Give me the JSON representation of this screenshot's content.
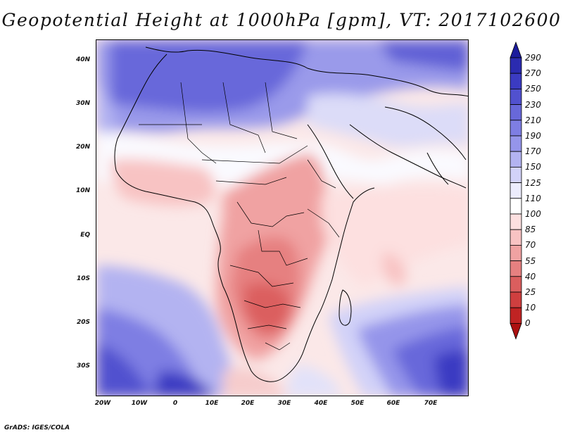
{
  "title": "Geopotential Height at 1000hPa [gpm], VT: 2017102600",
  "footer": "GrADS: IGES/COLA",
  "axes": {
    "lat_ticks": [
      "40N",
      "30N",
      "20N",
      "10N",
      "EQ",
      "10S",
      "20S",
      "30S"
    ],
    "lon_ticks": [
      "20W",
      "10W",
      "0",
      "10E",
      "20E",
      "30E",
      "40E",
      "50E",
      "60E",
      "70E"
    ]
  },
  "colorbar": {
    "labels": [
      "290",
      "270",
      "250",
      "230",
      "210",
      "190",
      "170",
      "150",
      "125",
      "110",
      "100",
      "85",
      "70",
      "55",
      "40",
      "25",
      "10",
      "0"
    ],
    "colors": [
      "#1b1b9c",
      "#2b2bb0",
      "#3b3bc2",
      "#5151cf",
      "#6868da",
      "#7e7ee3",
      "#9595ea",
      "#b3b3f1",
      "#d2d2f8",
      "#ececfd",
      "#ffffff",
      "#fde0e0",
      "#f8c3c3",
      "#f0a2a2",
      "#e68080",
      "#db5e5e",
      "#cf3f3f",
      "#c02323",
      "#ac1010"
    ]
  }
}
